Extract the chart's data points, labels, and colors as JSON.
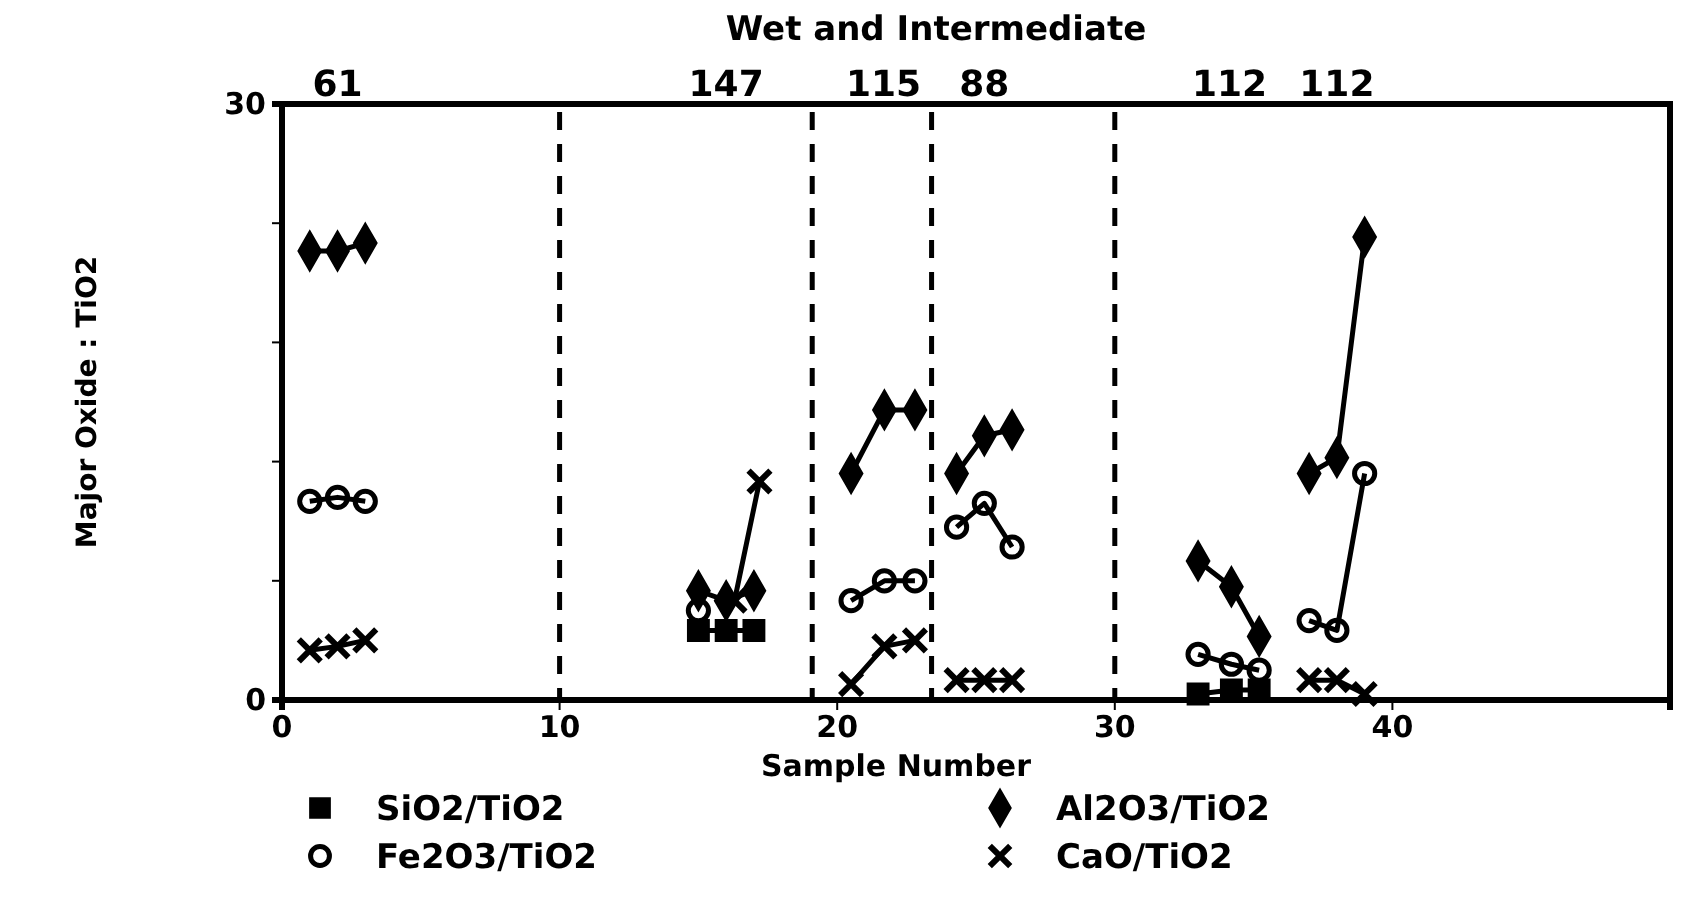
{
  "chart_data": {
    "type": "line",
    "title": "Wet and Intermediate",
    "xlabel": "Sample Number",
    "ylabel": "Major Oxide : TiO2",
    "x": [
      1,
      2,
      3,
      9,
      15,
      16,
      17,
      19,
      20.5,
      21.7,
      22.8,
      23.4,
      24.3,
      25.3,
      26.3,
      30,
      33,
      34.2,
      35.2,
      36,
      37,
      38,
      39
    ],
    "xlim": [
      0,
      50
    ],
    "xticks": [
      0,
      10,
      20,
      30,
      40
    ],
    "ylim": [
      0,
      30
    ],
    "yticks": [
      0,
      {
        "value": 6,
        "label": null
      },
      {
        "value": 12,
        "label": null
      },
      {
        "value": 18,
        "label": null
      },
      {
        "value": 24,
        "label": null
      },
      30
    ],
    "series": [
      {
        "name": "SiO2/TiO2",
        "color": "#000000",
        "marker": "square",
        "values": [
          null,
          null,
          null,
          null,
          3.5,
          3.5,
          3.5,
          null,
          null,
          null,
          null,
          null,
          null,
          null,
          null,
          null,
          0.3,
          0.5,
          0.5,
          null,
          null,
          null,
          null
        ]
      },
      {
        "name": "Al2O3/TiO2",
        "color": "#000000",
        "marker": "diamond",
        "values": [
          22.6,
          22.6,
          23,
          null,
          5.5,
          5,
          5.5,
          null,
          11.4,
          14.6,
          14.6,
          null,
          11.4,
          13.3,
          13.6,
          null,
          7,
          5.7,
          3.2,
          null,
          11.4,
          12.2,
          23.3
        ]
      },
      {
        "name": "Fe2O3/TiO2",
        "color": "#000000",
        "marker": "circle",
        "values": [
          10,
          10.2,
          10,
          null,
          4.5,
          null,
          null,
          null,
          5,
          6,
          6,
          null,
          8.7,
          9.9,
          7.7,
          null,
          2.3,
          1.8,
          1.5,
          null,
          4,
          3.5,
          11.4
        ]
      },
      {
        "name": "CaO/TiO2",
        "color": "#000000",
        "marker": "cross",
        "x": [
          1,
          2,
          3,
          9,
          15.3,
          16.3,
          17.2,
          19,
          20.5,
          21.7,
          22.8,
          23.4,
          24.3,
          25.3,
          26.3,
          30,
          33,
          34.2,
          35.2,
          36,
          37,
          38,
          39
        ],
        "values": [
          2.5,
          2.7,
          3,
          null,
          null,
          5,
          11,
          null,
          0.8,
          2.7,
          3,
          null,
          1,
          1,
          1,
          null,
          null,
          null,
          null,
          null,
          1,
          1,
          0.3
        ]
      }
    ],
    "ref_lines": [
      {
        "axis": "x",
        "value": 10,
        "line_style": "dashed"
      },
      {
        "axis": "x",
        "value": 19.1,
        "line_style": "dashed"
      },
      {
        "axis": "x",
        "value": 23.4,
        "line_style": "dashed"
      },
      {
        "axis": "x",
        "value": 30,
        "line_style": "dashed"
      }
    ],
    "annotations": [
      "61",
      "147",
      "115",
      "88",
      "112",
      "112"
    ],
    "legend": "bottom",
    "grid": false
  }
}
